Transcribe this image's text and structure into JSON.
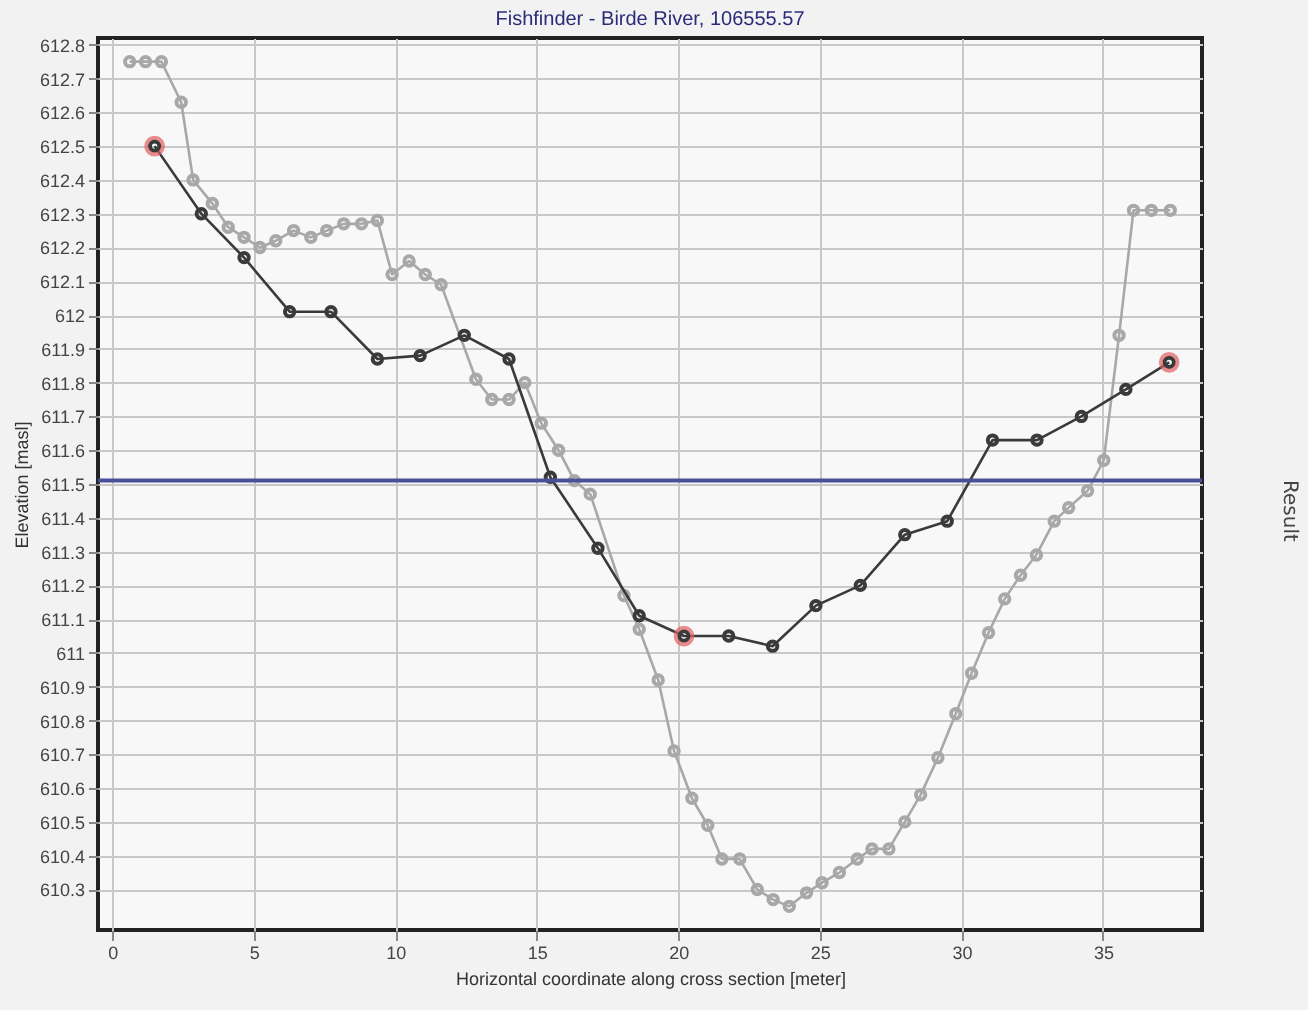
{
  "chart_data": {
    "type": "line",
    "title": "Fishfinder - Birde River, 106555.57",
    "xlabel": "Horizontal coordinate along cross section [meter]",
    "ylabel": "Elevation [masl]",
    "series": [
      {
        "color": "#a8a8a8",
        "x": [
          0.62,
          1.18,
          1.74,
          2.44,
          2.86,
          3.54,
          4.1,
          4.66,
          5.22,
          5.78,
          6.41,
          7.02,
          7.58,
          8.18,
          8.81,
          9.37,
          9.89,
          10.49,
          11.06,
          11.62,
          12.85,
          13.41,
          14.02,
          14.58,
          15.16,
          15.77,
          16.33,
          16.89,
          18.08,
          18.62,
          19.29,
          19.85,
          20.48,
          21.04,
          21.54,
          22.17,
          22.79,
          23.35,
          23.92,
          24.53,
          25.08,
          25.69,
          26.32,
          26.84,
          27.44,
          28.0,
          28.56,
          29.17,
          29.8,
          30.36,
          30.96,
          31.53,
          32.09,
          32.65,
          33.28,
          33.79,
          34.46,
          35.03,
          35.57,
          36.08,
          36.71,
          37.38
        ],
        "values": [
          612.75,
          612.75,
          612.75,
          612.63,
          612.4,
          612.33,
          612.26,
          612.23,
          612.2,
          612.22,
          612.25,
          612.23,
          612.25,
          612.27,
          612.27,
          612.28,
          612.12,
          612.16,
          612.12,
          612.09,
          611.81,
          611.75,
          611.75,
          611.8,
          611.68,
          611.6,
          611.51,
          611.47,
          611.17,
          611.07,
          610.92,
          610.71,
          610.57,
          610.49,
          610.39,
          610.39,
          610.3,
          610.27,
          610.25,
          610.29,
          610.32,
          610.35,
          610.39,
          610.42,
          610.42,
          610.5,
          610.58,
          610.69,
          610.82,
          610.94,
          611.06,
          611.16,
          611.23,
          611.29,
          611.39,
          611.43,
          611.48,
          611.57,
          611.94,
          612.31,
          612.31,
          612.31
        ]
      },
      {
        "color": "#3a3a3a",
        "x": [
          1.5,
          3.15,
          4.66,
          6.27,
          7.73,
          9.37,
          10.88,
          12.44,
          14.02,
          15.48,
          17.16,
          18.62,
          20.2,
          21.78,
          23.33,
          24.86,
          26.43,
          28.0,
          29.5,
          31.1,
          32.67,
          34.24,
          35.81,
          37.34
        ],
        "values": [
          612.5,
          612.3,
          612.17,
          612.01,
          612.01,
          611.87,
          611.88,
          611.94,
          611.87,
          611.52,
          611.31,
          611.11,
          611.05,
          611.05,
          611.02,
          611.14,
          611.2,
          611.35,
          611.39,
          611.63,
          611.63,
          611.7,
          611.78,
          611.86
        ]
      },
      {
        "type": "scatter",
        "color": "#e06060",
        "x": [
          1.5,
          20.2,
          37.34
        ],
        "values": [
          612.5,
          611.05,
          611.86
        ]
      }
    ],
    "ref_lines": [
      {
        "axis": "y",
        "value": 611.51,
        "color": "#4a4f9a"
      }
    ],
    "annotations": [
      "Result"
    ],
    "xlim": [
      -0.5,
      38.5
    ],
    "xticks": [
      0,
      5,
      10,
      15,
      20,
      25,
      30,
      35
    ],
    "ylim": [
      610.18,
      612.82
    ],
    "yticks": [
      610.3,
      610.4,
      610.5,
      610.6,
      610.7,
      610.8,
      610.9,
      611,
      611.1,
      611.2,
      611.3,
      611.4,
      611.5,
      611.6,
      611.7,
      611.8,
      611.9,
      612,
      612.1,
      612.2,
      612.3,
      612.4,
      612.5,
      612.6,
      612.7,
      612.8
    ],
    "grid": true,
    "marker": "circle"
  }
}
